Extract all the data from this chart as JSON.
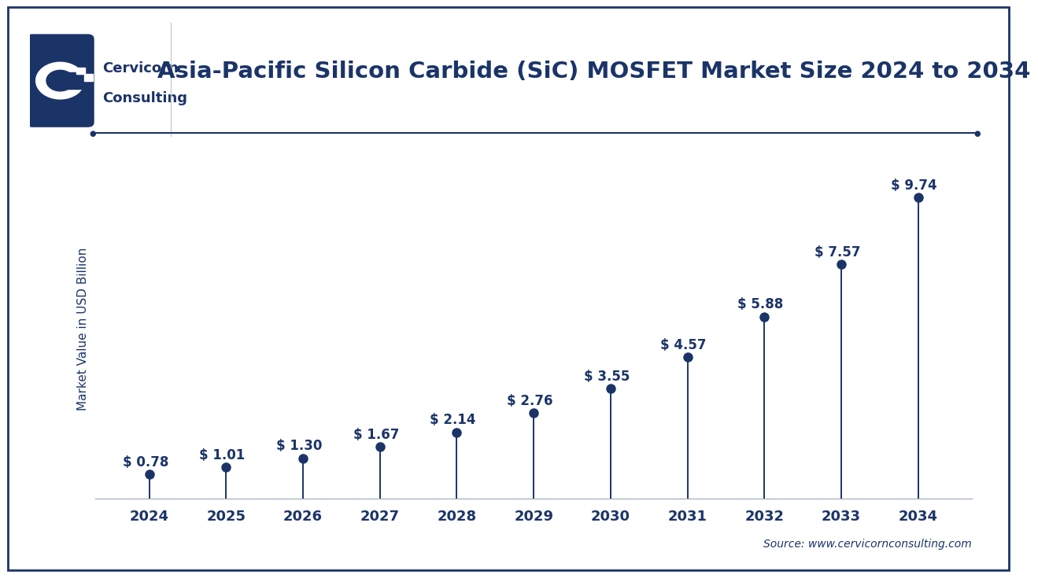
{
  "title": "Asia-Pacific Silicon Carbide (SiC) MOSFET Market Size 2024 to 2034",
  "ylabel": "Market Value in USD Billion",
  "source": "Source: www.cervicornconsulting.com",
  "years": [
    2024,
    2025,
    2026,
    2027,
    2028,
    2029,
    2030,
    2031,
    2032,
    2033,
    2034
  ],
  "values": [
    0.78,
    1.01,
    1.3,
    1.67,
    2.14,
    2.76,
    3.55,
    4.57,
    5.88,
    7.57,
    9.74
  ],
  "labels": [
    "$ 0.78",
    "$ 1.01",
    "$ 1.30",
    "$ 1.67",
    "$ 2.14",
    "$ 2.76",
    "$ 3.55",
    "$ 4.57",
    "$ 5.88",
    "$ 7.57",
    "$ 9.74"
  ],
  "dark_navy": "#1B3468",
  "navy": "#1B3468",
  "bg_color": "#ffffff",
  "grid_color": "#d8dfe8",
  "ylim": [
    0,
    11
  ],
  "title_fontsize": 21,
  "label_fontsize": 12,
  "tick_fontsize": 13,
  "source_fontsize": 10,
  "ylabel_fontsize": 11,
  "logo_text1": "Cervicorn",
  "logo_text2": "Consulting",
  "logo_fontsize": 13
}
